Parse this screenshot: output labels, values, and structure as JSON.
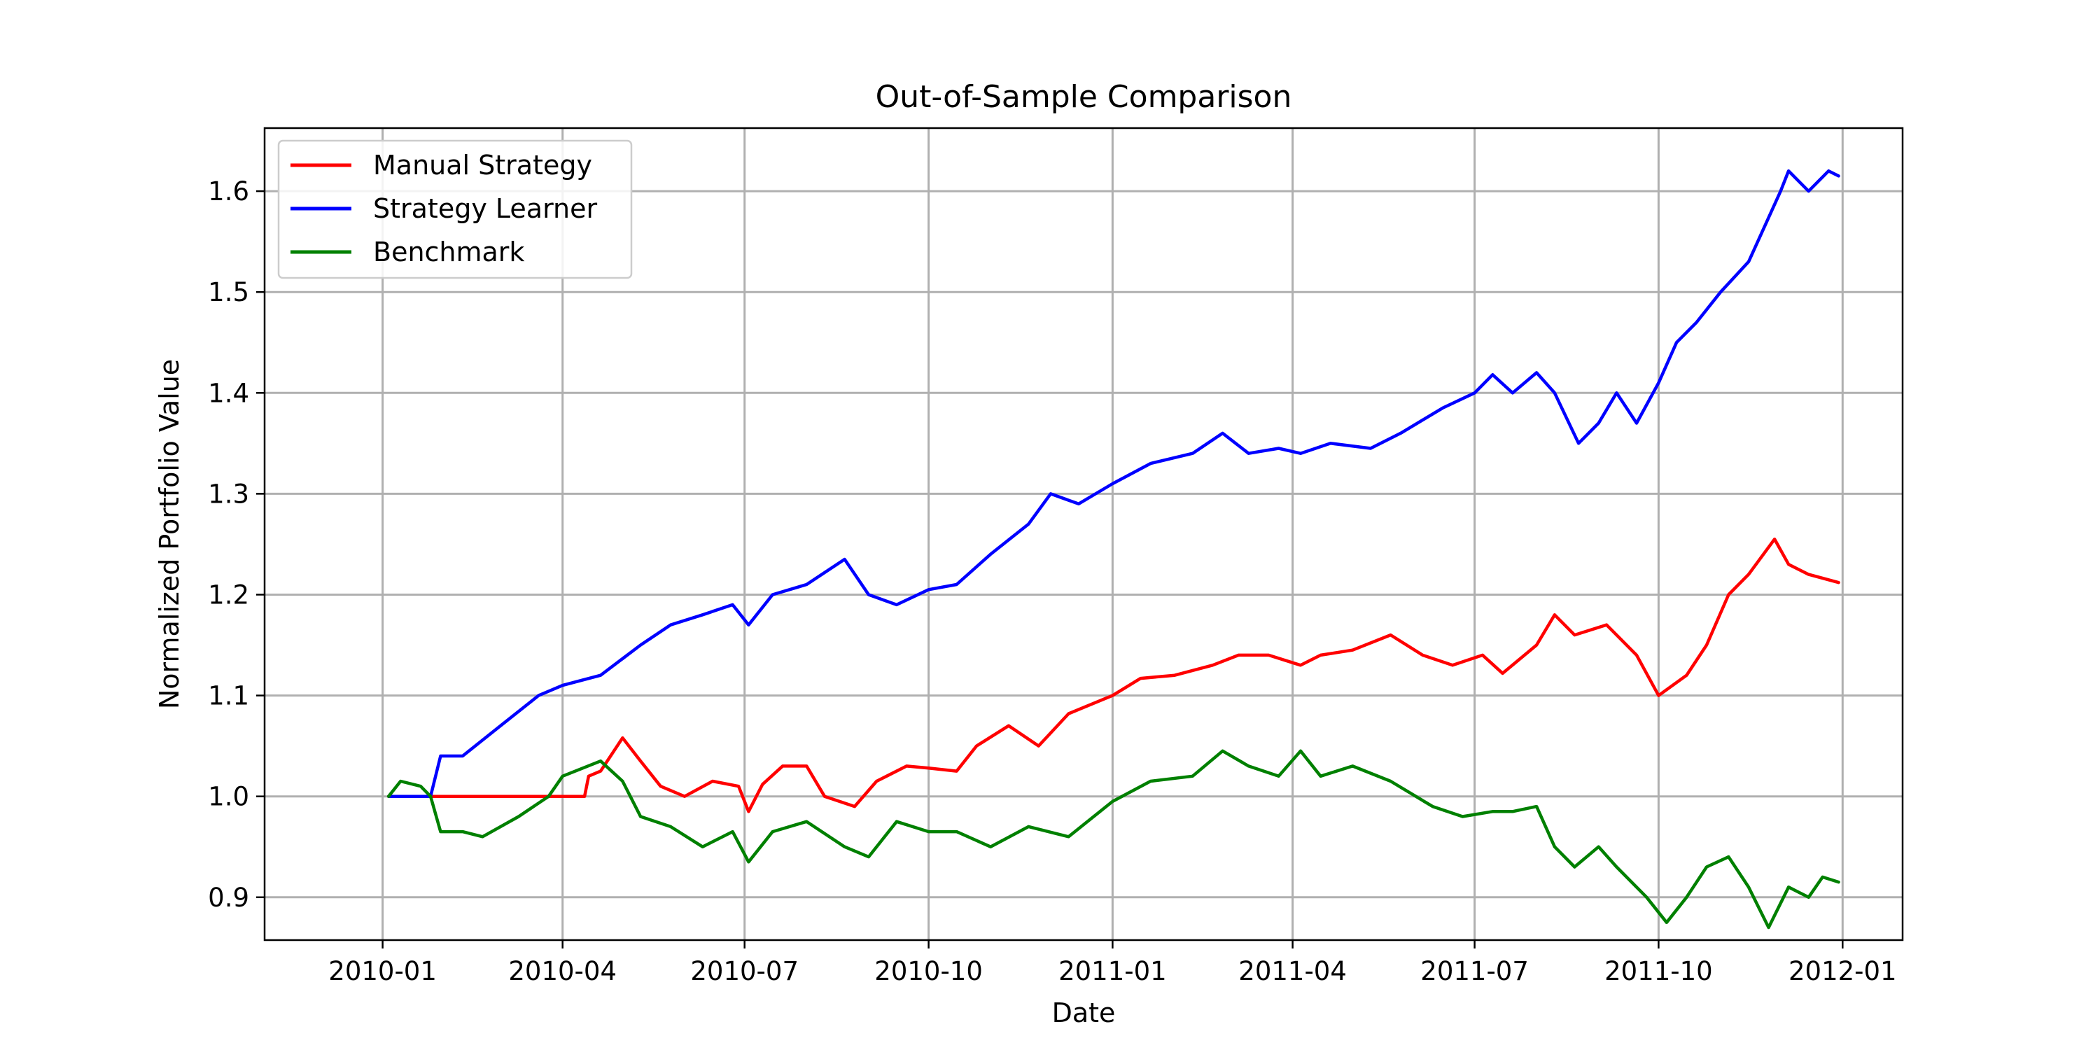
{
  "chart_data": {
    "type": "line",
    "title": "Out-of-Sample Comparison",
    "xlabel": "Date",
    "ylabel": "Normalized Portfolio Value",
    "x_ticks": [
      "2010-01",
      "2010-04",
      "2010-07",
      "2010-10",
      "2011-01",
      "2011-04",
      "2011-07",
      "2011-10",
      "2012-01"
    ],
    "y_ticks": [
      "0.9",
      "1.0",
      "1.1",
      "1.2",
      "1.3",
      "1.4",
      "1.5",
      "1.6"
    ],
    "xlim": [
      "2009-11-03",
      "2012-01-31"
    ],
    "ylim": [
      0.8575,
      1.6625
    ],
    "grid": true,
    "legend_position": "upper-left",
    "series": [
      {
        "name": "Manual Strategy",
        "color": "#ff0000",
        "points": [
          [
            "2010-01-04",
            1.0
          ],
          [
            "2010-02-01",
            1.0
          ],
          [
            "2010-03-01",
            1.0
          ],
          [
            "2010-04-01",
            1.0
          ],
          [
            "2010-04-12",
            1.0
          ],
          [
            "2010-04-14",
            1.02
          ],
          [
            "2010-04-20",
            1.025
          ],
          [
            "2010-05-01",
            1.058
          ],
          [
            "2010-05-10",
            1.035
          ],
          [
            "2010-05-20",
            1.01
          ],
          [
            "2010-06-01",
            1.0
          ],
          [
            "2010-06-15",
            1.015
          ],
          [
            "2010-06-28",
            1.01
          ],
          [
            "2010-07-03",
            0.985
          ],
          [
            "2010-07-10",
            1.012
          ],
          [
            "2010-07-20",
            1.03
          ],
          [
            "2010-08-01",
            1.03
          ],
          [
            "2010-08-10",
            1.0
          ],
          [
            "2010-08-25",
            0.99
          ],
          [
            "2010-09-05",
            1.015
          ],
          [
            "2010-09-20",
            1.03
          ],
          [
            "2010-10-01",
            1.028
          ],
          [
            "2010-10-15",
            1.025
          ],
          [
            "2010-10-25",
            1.05
          ],
          [
            "2010-11-10",
            1.07
          ],
          [
            "2010-11-25",
            1.05
          ],
          [
            "2010-12-10",
            1.082
          ],
          [
            "2011-01-01",
            1.1
          ],
          [
            "2011-01-15",
            1.117
          ],
          [
            "2011-02-01",
            1.12
          ],
          [
            "2011-02-20",
            1.13
          ],
          [
            "2011-03-05",
            1.14
          ],
          [
            "2011-03-20",
            1.14
          ],
          [
            "2011-04-05",
            1.13
          ],
          [
            "2011-04-15",
            1.14
          ],
          [
            "2011-05-01",
            1.145
          ],
          [
            "2011-05-20",
            1.16
          ],
          [
            "2011-06-05",
            1.14
          ],
          [
            "2011-06-20",
            1.13
          ],
          [
            "2011-07-05",
            1.14
          ],
          [
            "2011-07-15",
            1.122
          ],
          [
            "2011-08-01",
            1.15
          ],
          [
            "2011-08-10",
            1.18
          ],
          [
            "2011-08-20",
            1.16
          ],
          [
            "2011-09-05",
            1.17
          ],
          [
            "2011-09-20",
            1.14
          ],
          [
            "2011-10-01",
            1.1
          ],
          [
            "2011-10-15",
            1.12
          ],
          [
            "2011-10-25",
            1.15
          ],
          [
            "2011-11-05",
            1.2
          ],
          [
            "2011-11-15",
            1.22
          ],
          [
            "2011-11-28",
            1.255
          ],
          [
            "2011-12-05",
            1.23
          ],
          [
            "2011-12-15",
            1.22
          ],
          [
            "2011-12-30",
            1.212
          ]
        ]
      },
      {
        "name": "Strategy Learner",
        "color": "#0000ff",
        "points": [
          [
            "2010-01-04",
            1.0
          ],
          [
            "2010-01-25",
            1.0
          ],
          [
            "2010-01-30",
            1.04
          ],
          [
            "2010-02-10",
            1.04
          ],
          [
            "2010-03-01",
            1.07
          ],
          [
            "2010-03-20",
            1.1
          ],
          [
            "2010-04-01",
            1.11
          ],
          [
            "2010-04-20",
            1.12
          ],
          [
            "2010-05-10",
            1.15
          ],
          [
            "2010-05-25",
            1.17
          ],
          [
            "2010-06-10",
            1.18
          ],
          [
            "2010-06-25",
            1.19
          ],
          [
            "2010-07-03",
            1.17
          ],
          [
            "2010-07-15",
            1.2
          ],
          [
            "2010-08-01",
            1.21
          ],
          [
            "2010-08-20",
            1.235
          ],
          [
            "2010-09-01",
            1.2
          ],
          [
            "2010-09-15",
            1.19
          ],
          [
            "2010-10-01",
            1.205
          ],
          [
            "2010-10-15",
            1.21
          ],
          [
            "2010-11-01",
            1.24
          ],
          [
            "2010-11-20",
            1.27
          ],
          [
            "2010-12-01",
            1.3
          ],
          [
            "2010-12-15",
            1.29
          ],
          [
            "2011-01-01",
            1.31
          ],
          [
            "2011-01-20",
            1.33
          ],
          [
            "2011-02-10",
            1.34
          ],
          [
            "2011-02-25",
            1.36
          ],
          [
            "2011-03-10",
            1.34
          ],
          [
            "2011-03-25",
            1.345
          ],
          [
            "2011-04-05",
            1.34
          ],
          [
            "2011-04-20",
            1.35
          ],
          [
            "2011-05-10",
            1.345
          ],
          [
            "2011-05-25",
            1.36
          ],
          [
            "2011-06-15",
            1.385
          ],
          [
            "2011-07-01",
            1.4
          ],
          [
            "2011-07-10",
            1.418
          ],
          [
            "2011-07-20",
            1.4
          ],
          [
            "2011-08-01",
            1.42
          ],
          [
            "2011-08-10",
            1.4
          ],
          [
            "2011-08-22",
            1.35
          ],
          [
            "2011-09-01",
            1.37
          ],
          [
            "2011-09-10",
            1.4
          ],
          [
            "2011-09-20",
            1.37
          ],
          [
            "2011-10-01",
            1.41
          ],
          [
            "2011-10-10",
            1.45
          ],
          [
            "2011-10-20",
            1.47
          ],
          [
            "2011-11-01",
            1.5
          ],
          [
            "2011-11-15",
            1.53
          ],
          [
            "2011-12-01",
            1.6
          ],
          [
            "2011-12-05",
            1.62
          ],
          [
            "2011-12-15",
            1.6
          ],
          [
            "2011-12-25",
            1.62
          ],
          [
            "2011-12-30",
            1.615
          ]
        ]
      },
      {
        "name": "Benchmark",
        "color": "#008000",
        "points": [
          [
            "2010-01-04",
            1.0
          ],
          [
            "2010-01-10",
            1.015
          ],
          [
            "2010-01-20",
            1.01
          ],
          [
            "2010-01-25",
            1.0
          ],
          [
            "2010-01-30",
            0.965
          ],
          [
            "2010-02-10",
            0.965
          ],
          [
            "2010-02-20",
            0.96
          ],
          [
            "2010-03-10",
            0.98
          ],
          [
            "2010-03-25",
            1.0
          ],
          [
            "2010-04-01",
            1.02
          ],
          [
            "2010-04-20",
            1.035
          ],
          [
            "2010-05-01",
            1.015
          ],
          [
            "2010-05-10",
            0.98
          ],
          [
            "2010-05-25",
            0.97
          ],
          [
            "2010-06-10",
            0.95
          ],
          [
            "2010-06-25",
            0.965
          ],
          [
            "2010-07-03",
            0.935
          ],
          [
            "2010-07-15",
            0.965
          ],
          [
            "2010-08-01",
            0.975
          ],
          [
            "2010-08-20",
            0.95
          ],
          [
            "2010-09-01",
            0.94
          ],
          [
            "2010-09-15",
            0.975
          ],
          [
            "2010-10-01",
            0.965
          ],
          [
            "2010-10-15",
            0.965
          ],
          [
            "2010-11-01",
            0.95
          ],
          [
            "2010-11-20",
            0.97
          ],
          [
            "2010-12-10",
            0.96
          ],
          [
            "2011-01-01",
            0.995
          ],
          [
            "2011-01-20",
            1.015
          ],
          [
            "2011-02-10",
            1.02
          ],
          [
            "2011-02-25",
            1.045
          ],
          [
            "2011-03-10",
            1.03
          ],
          [
            "2011-03-25",
            1.02
          ],
          [
            "2011-04-05",
            1.045
          ],
          [
            "2011-04-15",
            1.02
          ],
          [
            "2011-05-01",
            1.03
          ],
          [
            "2011-05-20",
            1.015
          ],
          [
            "2011-06-10",
            0.99
          ],
          [
            "2011-06-25",
            0.98
          ],
          [
            "2011-07-10",
            0.985
          ],
          [
            "2011-07-20",
            0.985
          ],
          [
            "2011-08-01",
            0.99
          ],
          [
            "2011-08-10",
            0.95
          ],
          [
            "2011-08-20",
            0.93
          ],
          [
            "2011-09-01",
            0.95
          ],
          [
            "2011-09-10",
            0.93
          ],
          [
            "2011-09-25",
            0.9
          ],
          [
            "2011-10-05",
            0.875
          ],
          [
            "2011-10-15",
            0.9
          ],
          [
            "2011-10-25",
            0.93
          ],
          [
            "2011-11-05",
            0.94
          ],
          [
            "2011-11-15",
            0.91
          ],
          [
            "2011-11-25",
            0.87
          ],
          [
            "2011-12-05",
            0.91
          ],
          [
            "2011-12-15",
            0.9
          ],
          [
            "2011-12-22",
            0.92
          ],
          [
            "2011-12-30",
            0.915
          ]
        ]
      }
    ]
  }
}
